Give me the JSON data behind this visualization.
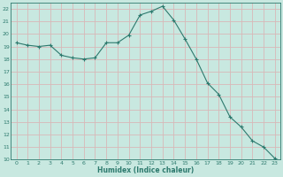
{
  "x": [
    0,
    1,
    2,
    3,
    4,
    5,
    6,
    7,
    8,
    9,
    10,
    11,
    12,
    13,
    14,
    15,
    16,
    17,
    18,
    19,
    20,
    21,
    22,
    23
  ],
  "y": [
    19.3,
    19.1,
    19.0,
    19.1,
    18.3,
    18.1,
    18.0,
    18.1,
    19.3,
    19.3,
    19.9,
    21.5,
    21.8,
    22.2,
    21.1,
    19.6,
    18.0,
    16.1,
    15.2,
    13.4,
    12.6,
    11.5,
    11.0,
    10.1
  ],
  "line_color": "#2d7a6e",
  "marker": "+",
  "marker_color": "#2d7a6e",
  "bg_color": "#c8e8e0",
  "grid_color": "#d8b8b8",
  "tick_color": "#2d7a6e",
  "label_color": "#2d7a6e",
  "xlabel": "Humidex (Indice chaleur)",
  "xlim": [
    -0.5,
    23.5
  ],
  "ylim": [
    10,
    22.5
  ],
  "yticks": [
    10,
    11,
    12,
    13,
    14,
    15,
    16,
    17,
    18,
    19,
    20,
    21,
    22
  ],
  "xticks": [
    0,
    1,
    2,
    3,
    4,
    5,
    6,
    7,
    8,
    9,
    10,
    11,
    12,
    13,
    14,
    15,
    16,
    17,
    18,
    19,
    20,
    21,
    22,
    23
  ]
}
